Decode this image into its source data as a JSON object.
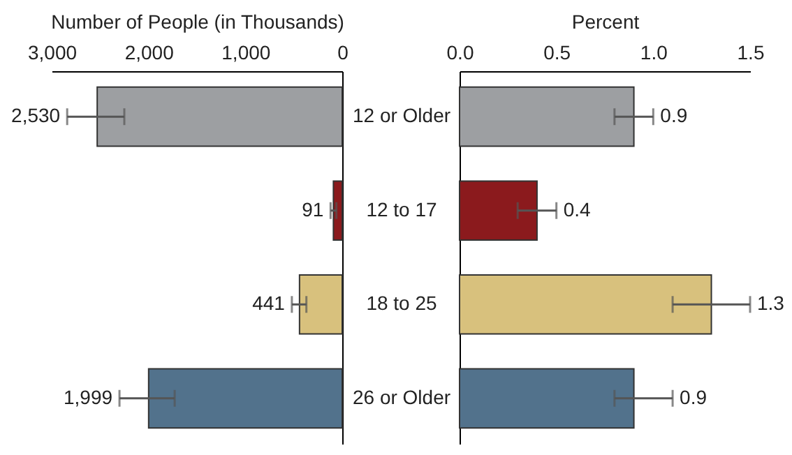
{
  "chart_data": [
    {
      "type": "bar",
      "orientation": "horizontal",
      "xlabel": "Number of People (in Thousands)",
      "categories": [
        null,
        null,
        null,
        null
      ],
      "values": [
        2530,
        91,
        441,
        1999
      ],
      "colors": [
        "#9d9fa2",
        "#8b1a1d",
        "#d8c17d",
        "#52728c"
      ],
      "errors": [
        [
          2250,
          2840
        ],
        [
          60,
          120
        ],
        [
          370,
          520
        ],
        [
          1730,
          2300
        ]
      ],
      "value_labels": [
        "2,530",
        "91",
        "441",
        "1,999"
      ],
      "xlim": [
        3000,
        0
      ],
      "xticks": [
        {
          "value": 3000,
          "label": "3,000"
        },
        {
          "value": 2000,
          "label": "2,000"
        },
        {
          "value": 1000,
          "label": "1,000"
        },
        0
      ],
      "tick_labels": "x"
    },
    {
      "type": "bar",
      "orientation": "horizontal",
      "xlabel": "Percent",
      "categories": [
        "12 or Older",
        "12 to 17",
        "18 to 25",
        "26 or Older"
      ],
      "values": [
        0.9,
        0.4,
        1.3,
        0.9
      ],
      "colors": [
        "#9d9fa2",
        "#8b1a1d",
        "#d8c17d",
        "#52728c"
      ],
      "errors": [
        [
          0.8,
          1.0
        ],
        [
          0.3,
          0.5
        ],
        [
          1.1,
          1.5
        ],
        [
          0.8,
          1.1
        ]
      ],
      "data_labels": true,
      "xlim": [
        0,
        1.5
      ],
      "xticks": [
        {
          "value": 0,
          "label": "0.0"
        },
        0.5,
        {
          "value": 1,
          "label": "1.0"
        },
        1.5
      ]
    }
  ]
}
